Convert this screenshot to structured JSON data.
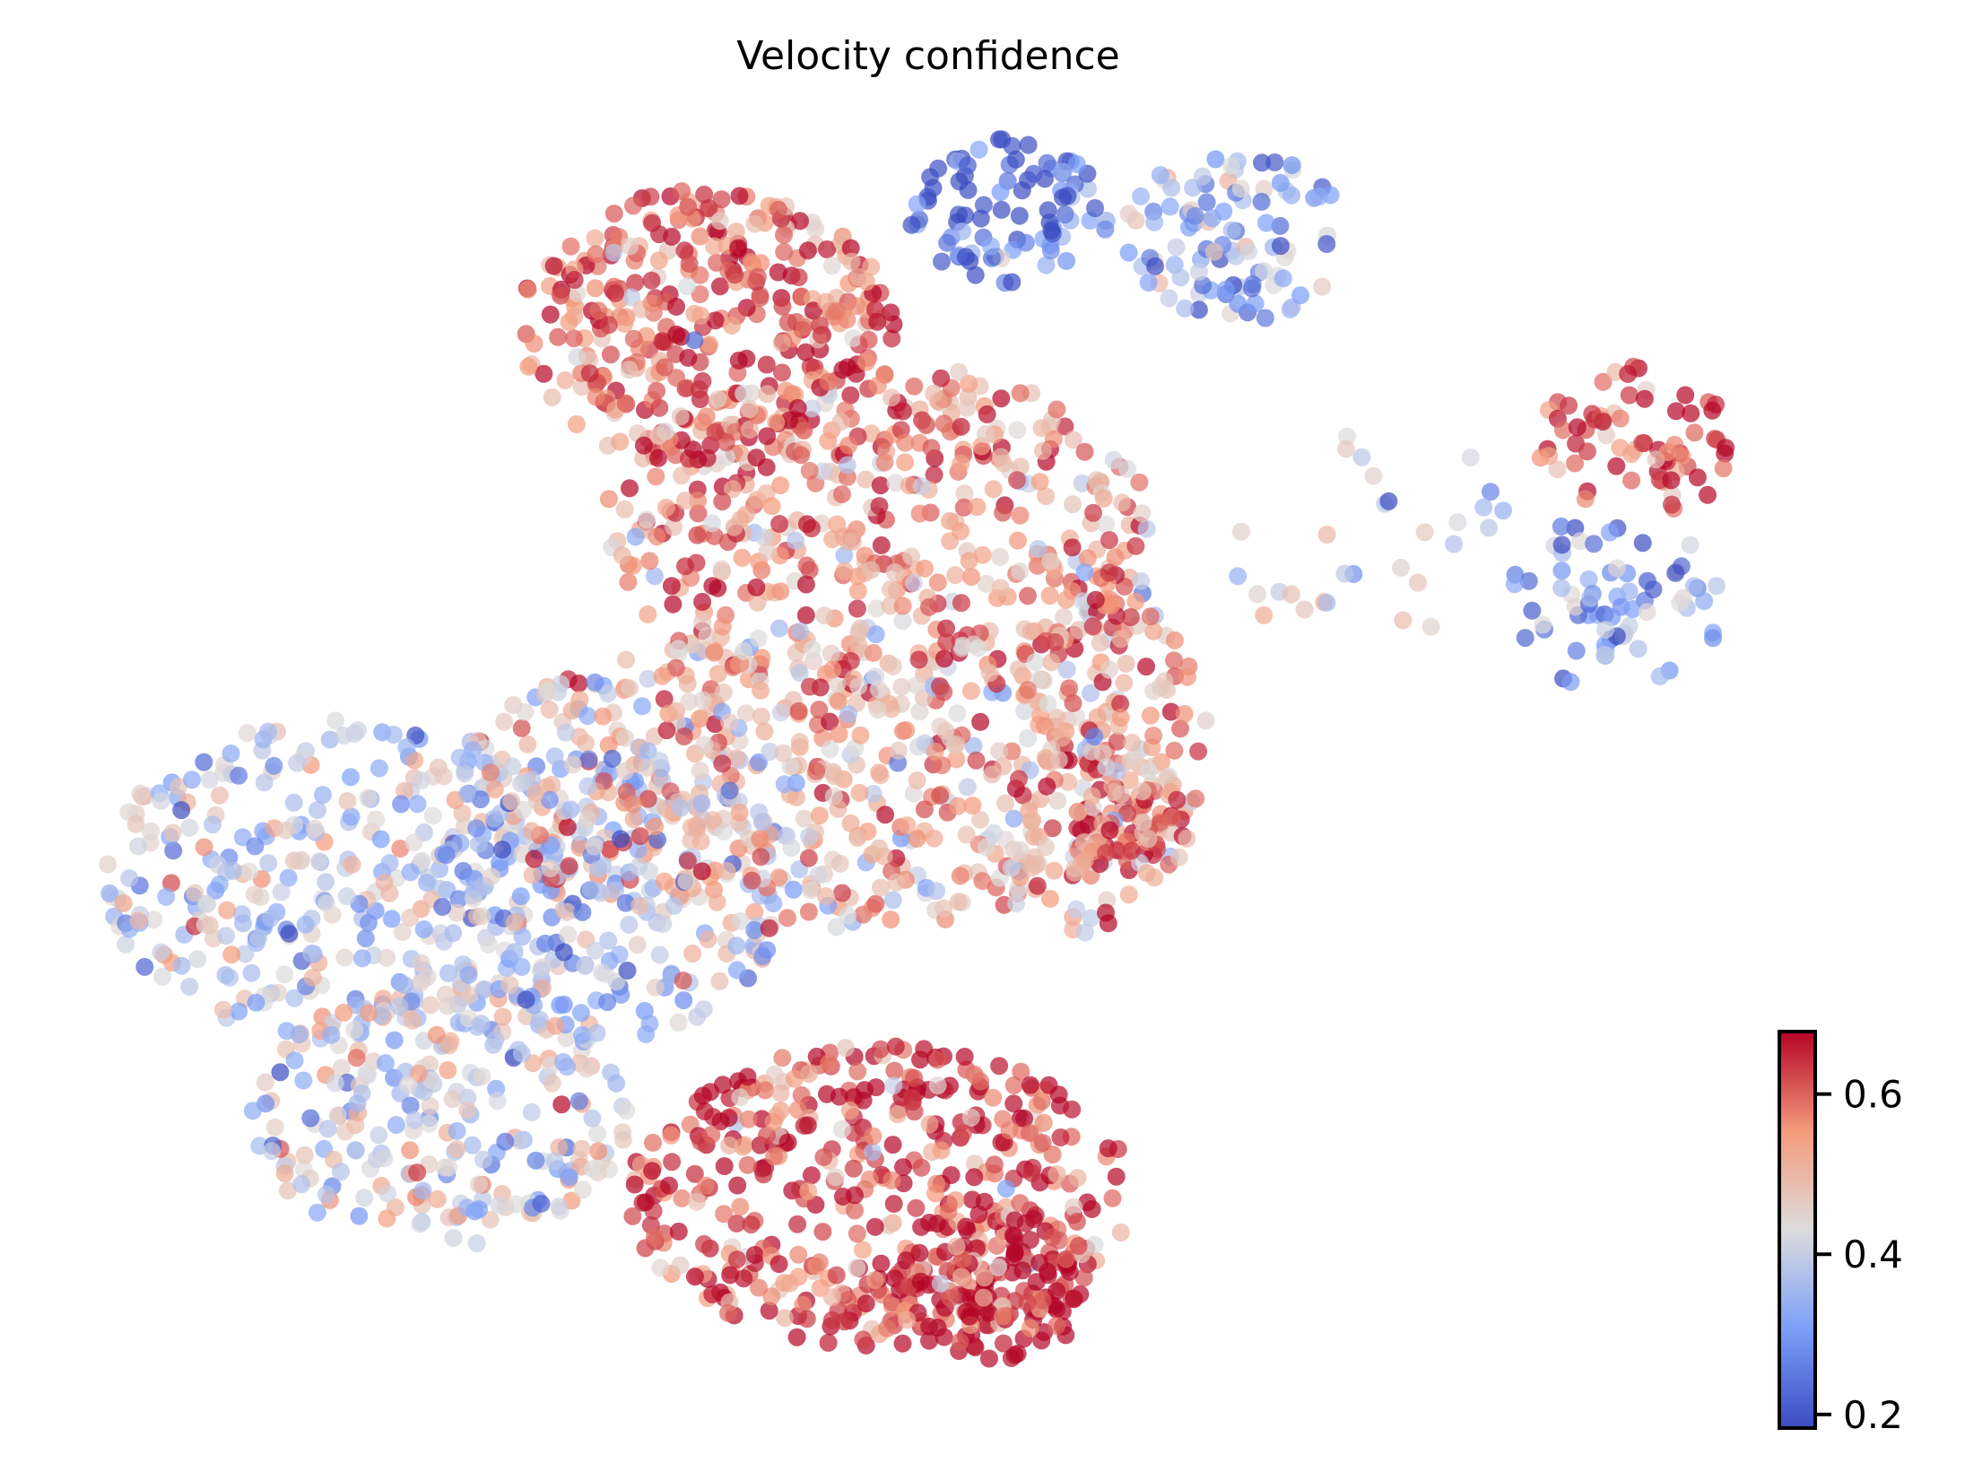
{
  "chart_data": {
    "type": "scatter",
    "title": "Velocity confidence",
    "xlabel": "",
    "ylabel": "",
    "xlim": [
      0,
      100
    ],
    "ylim": [
      0,
      100
    ],
    "grid": false,
    "axes_visible": false,
    "colormap": "coolwarm",
    "color_range": [
      0.183,
      0.678
    ],
    "colorbar": {
      "placement": "bottom-right",
      "ticks": [
        0.2,
        0.4,
        0.6
      ],
      "tick_labels": [
        "0.2",
        "0.4",
        "0.6"
      ]
    },
    "point_alpha": 0.7,
    "value_spread": 0.09,
    "clusters": [
      {
        "name": "upper-left",
        "cx": 36.5,
        "cy": 85.7,
        "sx": 11.4,
        "sy": 11.2,
        "mean": 0.6,
        "n": 350
      },
      {
        "name": "upper-mid-blue",
        "cx": 54.7,
        "cy": 94.9,
        "sx": 6.1,
        "sy": 6.1,
        "mean": 0.22,
        "n": 90
      },
      {
        "name": "upper-right-lightblue",
        "cx": 68.4,
        "cy": 92.9,
        "sx": 6.8,
        "sy": 7.1,
        "mean": 0.33,
        "n": 100
      },
      {
        "name": "right-arc-red",
        "cx": 92.8,
        "cy": 76.5,
        "sx": 6.1,
        "sy": 6.1,
        "mean": 0.63,
        "n": 70
      },
      {
        "name": "right-arc-blue",
        "cx": 91.3,
        "cy": 63.3,
        "sx": 6.8,
        "sy": 7.1,
        "mean": 0.3,
        "n": 70
      },
      {
        "name": "bridge",
        "cx": 76.0,
        "cy": 69.4,
        "sx": 9.1,
        "sy": 9.2,
        "mean": 0.4,
        "n": 30
      },
      {
        "name": "central-upper",
        "cx": 47.1,
        "cy": 69.4,
        "sx": 16.7,
        "sy": 13.3,
        "mean": 0.55,
        "n": 450
      },
      {
        "name": "central",
        "cx": 43.3,
        "cy": 49.0,
        "sx": 21.3,
        "sy": 12.2,
        "mean": 0.5,
        "n": 550
      },
      {
        "name": "left-wing",
        "cx": 15.2,
        "cy": 40.8,
        "sx": 15.2,
        "sy": 13.3,
        "mean": 0.4,
        "n": 350
      },
      {
        "name": "left-lower",
        "cx": 20.5,
        "cy": 22.4,
        "sx": 11.4,
        "sy": 11.2,
        "mean": 0.42,
        "n": 250
      },
      {
        "name": "central-blue",
        "cx": 30.4,
        "cy": 39.8,
        "sx": 11.4,
        "sy": 12.2,
        "mean": 0.36,
        "n": 200
      },
      {
        "name": "bottom-red",
        "cx": 47.1,
        "cy": 15.3,
        "sx": 15.2,
        "sy": 12.2,
        "mean": 0.62,
        "n": 450
      },
      {
        "name": "bottom-deep-red",
        "cx": 54.0,
        "cy": 8.2,
        "sx": 6.1,
        "sy": 6.1,
        "mean": 0.67,
        "n": 120
      },
      {
        "name": "right-side",
        "cx": 60.8,
        "cy": 51.0,
        "sx": 6.1,
        "sy": 15.3,
        "mean": 0.55,
        "n": 150
      },
      {
        "name": "right-ear",
        "cx": 62.4,
        "cy": 44.9,
        "sx": 3.8,
        "sy": 4.1,
        "mean": 0.6,
        "n": 50
      }
    ]
  }
}
